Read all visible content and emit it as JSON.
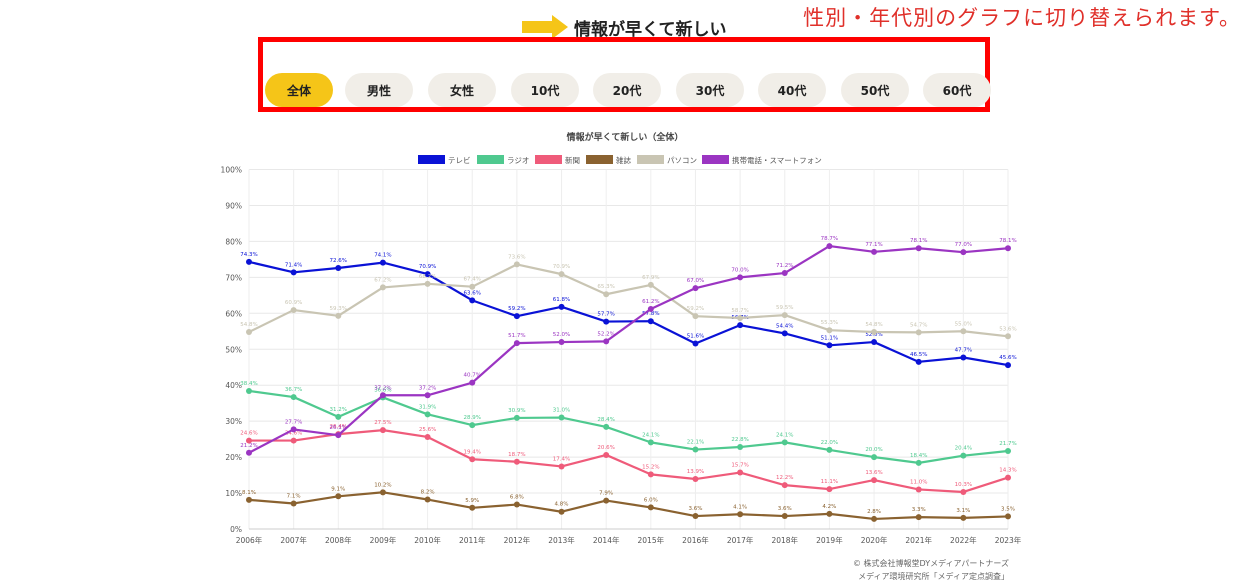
{
  "annotation": "性別・年代別のグラフに切り替えられます。",
  "section_title": "情報が早くて新しい",
  "colors": {
    "accent": "#f5c518",
    "pill": "#f1eee8",
    "highlight": "#ff0000"
  },
  "filters": [
    {
      "label": "全体",
      "active": true
    },
    {
      "label": "男性",
      "active": false
    },
    {
      "label": "女性",
      "active": false
    },
    {
      "label": "10代",
      "active": false
    },
    {
      "label": "20代",
      "active": false
    },
    {
      "label": "30代",
      "active": false
    },
    {
      "label": "40代",
      "active": false
    },
    {
      "label": "50代",
      "active": false
    },
    {
      "label": "60代",
      "active": false
    }
  ],
  "credits": {
    "line1": "© 株式会社博報堂DYメディアパートナーズ",
    "line2": "メディア環境研究所「メディア定点調査」"
  },
  "chart_data": {
    "type": "line",
    "title": "情報が早くて新しい（全体）",
    "xlabel": "",
    "ylabel": "",
    "ylim": [
      0,
      100
    ],
    "yticks": [
      "0%",
      "10%",
      "20%",
      "30%",
      "40%",
      "50%",
      "60%",
      "70%",
      "80%",
      "90%",
      "100%"
    ],
    "categories": [
      "2006年",
      "2007年",
      "2008年",
      "2009年",
      "2010年",
      "2011年",
      "2012年",
      "2013年",
      "2014年",
      "2015年",
      "2016年",
      "2017年",
      "2018年",
      "2019年",
      "2020年",
      "2021年",
      "2022年",
      "2023年"
    ],
    "legend_position": "top-center",
    "series": [
      {
        "name": "テレビ",
        "color": "#0a12d6",
        "values": [
          74.3,
          71.4,
          72.6,
          74.1,
          70.9,
          63.6,
          59.2,
          61.8,
          57.7,
          57.8,
          51.6,
          56.7,
          54.4,
          51.1,
          52.0,
          46.5,
          47.7,
          45.6
        ]
      },
      {
        "name": "ラジオ",
        "color": "#4fc98f",
        "values": [
          38.4,
          36.7,
          31.2,
          36.6,
          31.9,
          28.9,
          30.9,
          31.0,
          28.4,
          24.1,
          22.1,
          22.8,
          24.1,
          22.0,
          20.0,
          18.4,
          20.4,
          21.7
        ]
      },
      {
        "name": "新聞",
        "color": "#ef5b7a",
        "values": [
          24.6,
          24.6,
          26.4,
          27.5,
          25.6,
          19.4,
          18.7,
          17.4,
          20.6,
          15.2,
          13.9,
          15.7,
          12.2,
          11.1,
          13.6,
          11.0,
          10.3,
          14.3
        ]
      },
      {
        "name": "雑誌",
        "color": "#8a6230",
        "values": [
          8.1,
          7.1,
          9.1,
          10.2,
          8.2,
          5.9,
          6.8,
          4.8,
          7.9,
          6.0,
          3.6,
          4.1,
          3.6,
          4.2,
          2.8,
          3.3,
          3.1,
          3.5
        ]
      },
      {
        "name": "パソコン",
        "color": "#c9c5b3",
        "values": [
          54.8,
          60.9,
          59.3,
          67.2,
          68.2,
          67.4,
          73.6,
          70.9,
          65.3,
          67.9,
          59.2,
          58.7,
          59.5,
          55.3,
          54.8,
          54.7,
          55.0,
          53.6
        ]
      },
      {
        "name": "携帯電話・スマートフォン",
        "color": "#9b35c2",
        "values": [
          21.2,
          27.7,
          26.1,
          37.2,
          37.2,
          40.7,
          51.7,
          52.0,
          52.2,
          61.2,
          67.0,
          70.0,
          71.2,
          78.7,
          77.1,
          78.1,
          77.0,
          78.1
        ]
      }
    ]
  }
}
